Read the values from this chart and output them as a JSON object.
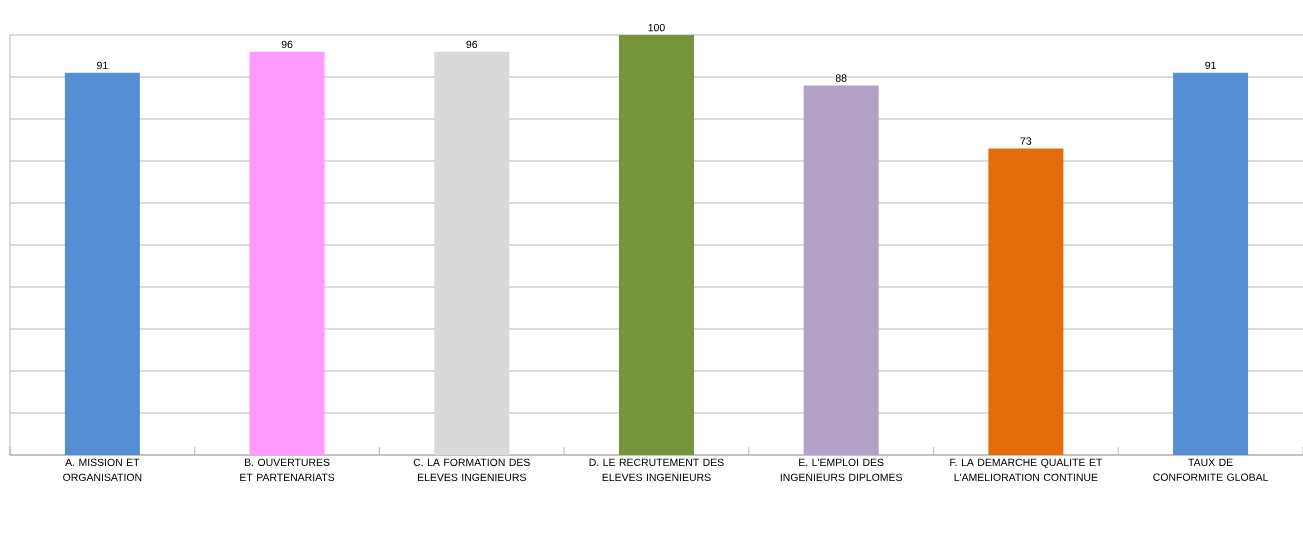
{
  "chart_data": {
    "type": "bar",
    "categories": [
      "A. MISSION ET ORGANISATION",
      "B. OUVERTURES ET PARTENARIATS",
      "C. LA FORMATION DES ELEVES INGENIEURS",
      "D. LE RECRUTEMENT DES ELEVES INGENIEURS",
      "E. L'EMPLOI DES INGENIEURS DIPLOMES",
      "F. LA DEMARCHE QUALITE ET L'AMELIORATION CONTINUE",
      "TAUX DE CONFORMITE GLOBAL"
    ],
    "values": [
      91,
      96,
      96,
      100,
      88,
      73,
      91
    ],
    "colors": [
      "#558ed5",
      "#ff99ff",
      "#d9d9d9",
      "#77933c",
      "#b3a2c7",
      "#e46c0a",
      "#558ed5"
    ],
    "ylim": [
      0,
      100
    ],
    "tick_labels": "x",
    "grid": "y",
    "data_labels": true
  }
}
